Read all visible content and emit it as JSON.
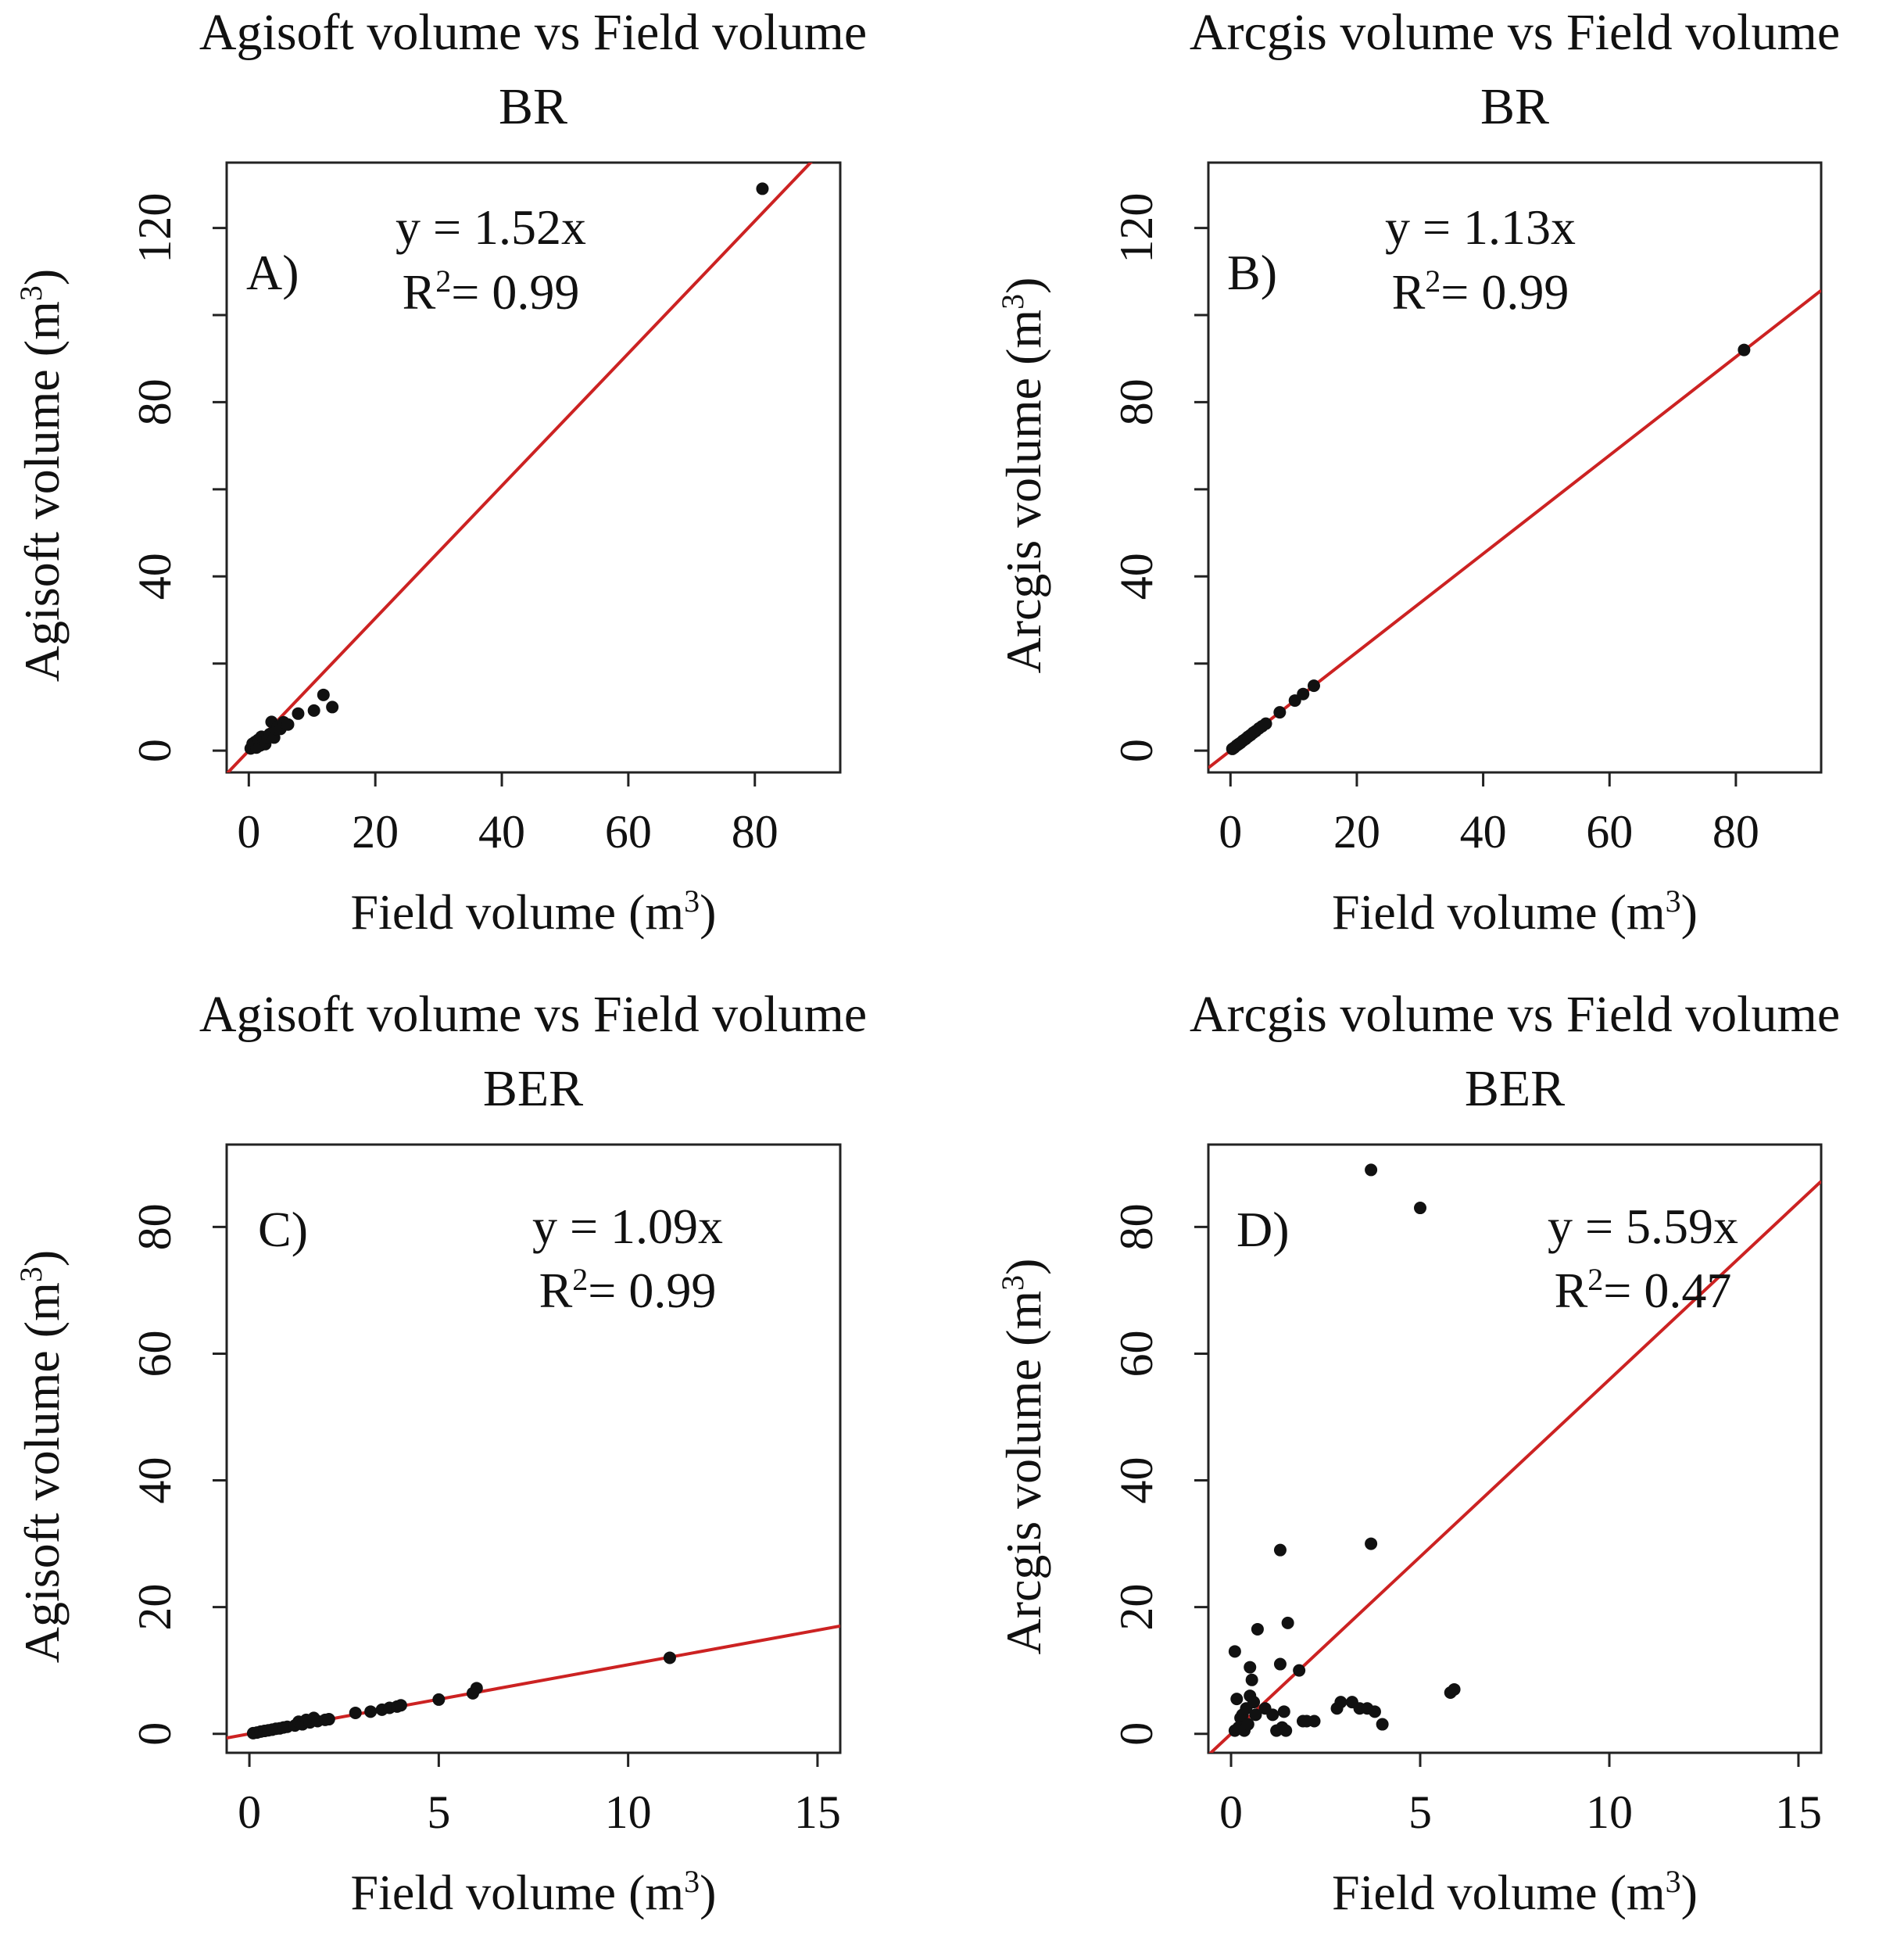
{
  "chart_data": [
    {
      "id": "A",
      "type": "scatter",
      "panel_label": "A)",
      "title_line1": "Agisoft volume vs Field volume",
      "title_line2": "BR",
      "xlabel": "Field volume",
      "ylabel": "Agisoft volume",
      "unit_base": "(m",
      "unit_exp": "3",
      "unit_close": ")",
      "xlim": [
        -3.5,
        93.5
      ],
      "ylim": [
        -5,
        135
      ],
      "xticks": [
        0,
        20,
        40,
        60,
        80
      ],
      "yticks": [
        0,
        40,
        80,
        120
      ],
      "yminor": [
        20,
        60,
        100
      ],
      "fit": {
        "slope": 1.52,
        "equation": "y = 1.52x",
        "r2_prefix": "R",
        "r2_exp": "2",
        "r2_value": "= 0.99",
        "color": "#cc2222"
      },
      "points": [
        [
          0.3,
          0.5
        ],
        [
          0.6,
          1.6
        ],
        [
          1,
          2
        ],
        [
          1.2,
          0.7
        ],
        [
          1.5,
          2.5
        ],
        [
          1.8,
          1.2
        ],
        [
          2,
          3.2
        ],
        [
          2.3,
          2
        ],
        [
          2.6,
          1.5
        ],
        [
          3,
          3
        ],
        [
          3.3,
          3.8
        ],
        [
          3.6,
          6.6
        ],
        [
          4,
          3
        ],
        [
          4.3,
          5
        ],
        [
          4.6,
          5.5
        ],
        [
          5,
          5
        ],
        [
          5.5,
          6.5
        ],
        [
          6.2,
          6
        ],
        [
          7.8,
          8.5
        ],
        [
          10.3,
          9.2
        ],
        [
          11.8,
          12.8
        ],
        [
          13.2,
          10
        ],
        [
          81.2,
          129
        ]
      ]
    },
    {
      "id": "B",
      "type": "scatter",
      "panel_label": "B)",
      "title_line1": "Arcgis volume vs Field volume",
      "title_line2": "BR",
      "xlabel": "Field volume",
      "ylabel": "Arcgis volume",
      "unit_base": "(m",
      "unit_exp": "3",
      "unit_close": ")",
      "xlim": [
        -3.5,
        93.5
      ],
      "ylim": [
        -5,
        135
      ],
      "xticks": [
        0,
        20,
        40,
        60,
        80
      ],
      "yticks": [
        0,
        40,
        80,
        120
      ],
      "yminor": [
        20,
        60,
        100
      ],
      "fit": {
        "slope": 1.13,
        "equation": "y = 1.13x",
        "r2_prefix": "R",
        "r2_exp": "2",
        "r2_value": "= 0.99",
        "color": "#cc2222"
      },
      "points": [
        [
          0.3,
          0.4
        ],
        [
          0.6,
          0.7
        ],
        [
          1,
          1.2
        ],
        [
          1.3,
          1.5
        ],
        [
          1.6,
          1.8
        ],
        [
          2,
          2.3
        ],
        [
          2.4,
          2.7
        ],
        [
          2.8,
          3.2
        ],
        [
          3.2,
          3.6
        ],
        [
          3.6,
          4.1
        ],
        [
          4,
          4.5
        ],
        [
          4.5,
          5.1
        ],
        [
          5,
          5.6
        ],
        [
          5.6,
          6.2
        ],
        [
          7.8,
          8.8
        ],
        [
          10.2,
          11.5
        ],
        [
          11.5,
          13
        ],
        [
          13.2,
          14.9
        ],
        [
          81.3,
          92
        ]
      ]
    },
    {
      "id": "C",
      "type": "scatter",
      "panel_label": "C)",
      "title_line1": "Agisoft volume vs Field volume",
      "title_line2": "BER",
      "xlabel": "Field volume",
      "ylabel": "Agisoft volume",
      "unit_base": "(m",
      "unit_exp": "3",
      "unit_close": ")",
      "xlim": [
        -0.6,
        15.6
      ],
      "ylim": [
        -3,
        93
      ],
      "xticks": [
        0,
        5,
        10,
        15
      ],
      "yticks": [
        0,
        20,
        40,
        60,
        80
      ],
      "yminor": [],
      "fit": {
        "slope": 1.09,
        "equation": "y = 1.09x",
        "r2_prefix": "R",
        "r2_exp": "2",
        "r2_value": "= 0.99",
        "color": "#cc2222"
      },
      "points": [
        [
          0.1,
          0.1
        ],
        [
          0.2,
          0.2
        ],
        [
          0.3,
          0.35
        ],
        [
          0.4,
          0.45
        ],
        [
          0.5,
          0.55
        ],
        [
          0.6,
          0.65
        ],
        [
          0.7,
          0.8
        ],
        [
          0.8,
          0.85
        ],
        [
          0.9,
          1.0
        ],
        [
          1.0,
          1.1
        ],
        [
          1.2,
          1.3
        ],
        [
          1.3,
          1.9
        ],
        [
          1.4,
          1.5
        ],
        [
          1.5,
          2.2
        ],
        [
          1.6,
          1.8
        ],
        [
          1.7,
          2.5
        ],
        [
          1.8,
          2.0
        ],
        [
          2.0,
          2.2
        ],
        [
          2.1,
          2.3
        ],
        [
          2.8,
          3.3
        ],
        [
          3.2,
          3.5
        ],
        [
          3.5,
          3.8
        ],
        [
          3.7,
          4.1
        ],
        [
          3.9,
          4.3
        ],
        [
          4.0,
          4.5
        ],
        [
          5.0,
          5.4
        ],
        [
          5.9,
          6.4
        ],
        [
          6.0,
          7.2
        ],
        [
          11.1,
          12.0
        ]
      ]
    },
    {
      "id": "D",
      "type": "scatter",
      "panel_label": "D)",
      "title_line1": "Arcgis volume vs Field volume",
      "title_line2": "BER",
      "xlabel": "Field volume",
      "ylabel": "Arcgis volume",
      "unit_base": "(m",
      "unit_exp": "3",
      "unit_close": ")",
      "xlim": [
        -0.6,
        15.6
      ],
      "ylim": [
        -3,
        93
      ],
      "xticks": [
        0,
        5,
        10,
        15
      ],
      "yticks": [
        0,
        20,
        40,
        60,
        80
      ],
      "yminor": [],
      "fit": {
        "slope": 5.59,
        "equation": "y = 5.59x",
        "r2_prefix": "R",
        "r2_exp": "2",
        "r2_value": "= 0.47",
        "color": "#cc2222"
      },
      "points": [
        [
          0.1,
          0.5
        ],
        [
          0.1,
          13
        ],
        [
          0.15,
          5.5
        ],
        [
          0.2,
          1
        ],
        [
          0.25,
          2.5
        ],
        [
          0.3,
          3
        ],
        [
          0.35,
          0.5
        ],
        [
          0.4,
          4
        ],
        [
          0.45,
          1.5
        ],
        [
          0.5,
          10.5
        ],
        [
          0.5,
          6
        ],
        [
          0.55,
          8.5
        ],
        [
          0.6,
          5
        ],
        [
          0.65,
          3
        ],
        [
          0.7,
          16.5
        ],
        [
          0.9,
          4
        ],
        [
          1.1,
          3
        ],
        [
          1.2,
          0.5
        ],
        [
          1.3,
          11
        ],
        [
          1.3,
          29
        ],
        [
          1.35,
          1
        ],
        [
          1.4,
          3.5
        ],
        [
          1.45,
          0.5
        ],
        [
          1.5,
          17.5
        ],
        [
          1.8,
          10
        ],
        [
          1.9,
          2
        ],
        [
          2.0,
          2
        ],
        [
          2.2,
          2
        ],
        [
          2.8,
          4
        ],
        [
          2.9,
          5
        ],
        [
          3.2,
          5
        ],
        [
          3.4,
          4
        ],
        [
          3.6,
          4
        ],
        [
          3.7,
          30
        ],
        [
          3.7,
          89
        ],
        [
          3.8,
          3.5
        ],
        [
          4.0,
          1.5
        ],
        [
          5.0,
          83
        ],
        [
          5.8,
          6.5
        ],
        [
          5.9,
          7
        ]
      ]
    }
  ]
}
